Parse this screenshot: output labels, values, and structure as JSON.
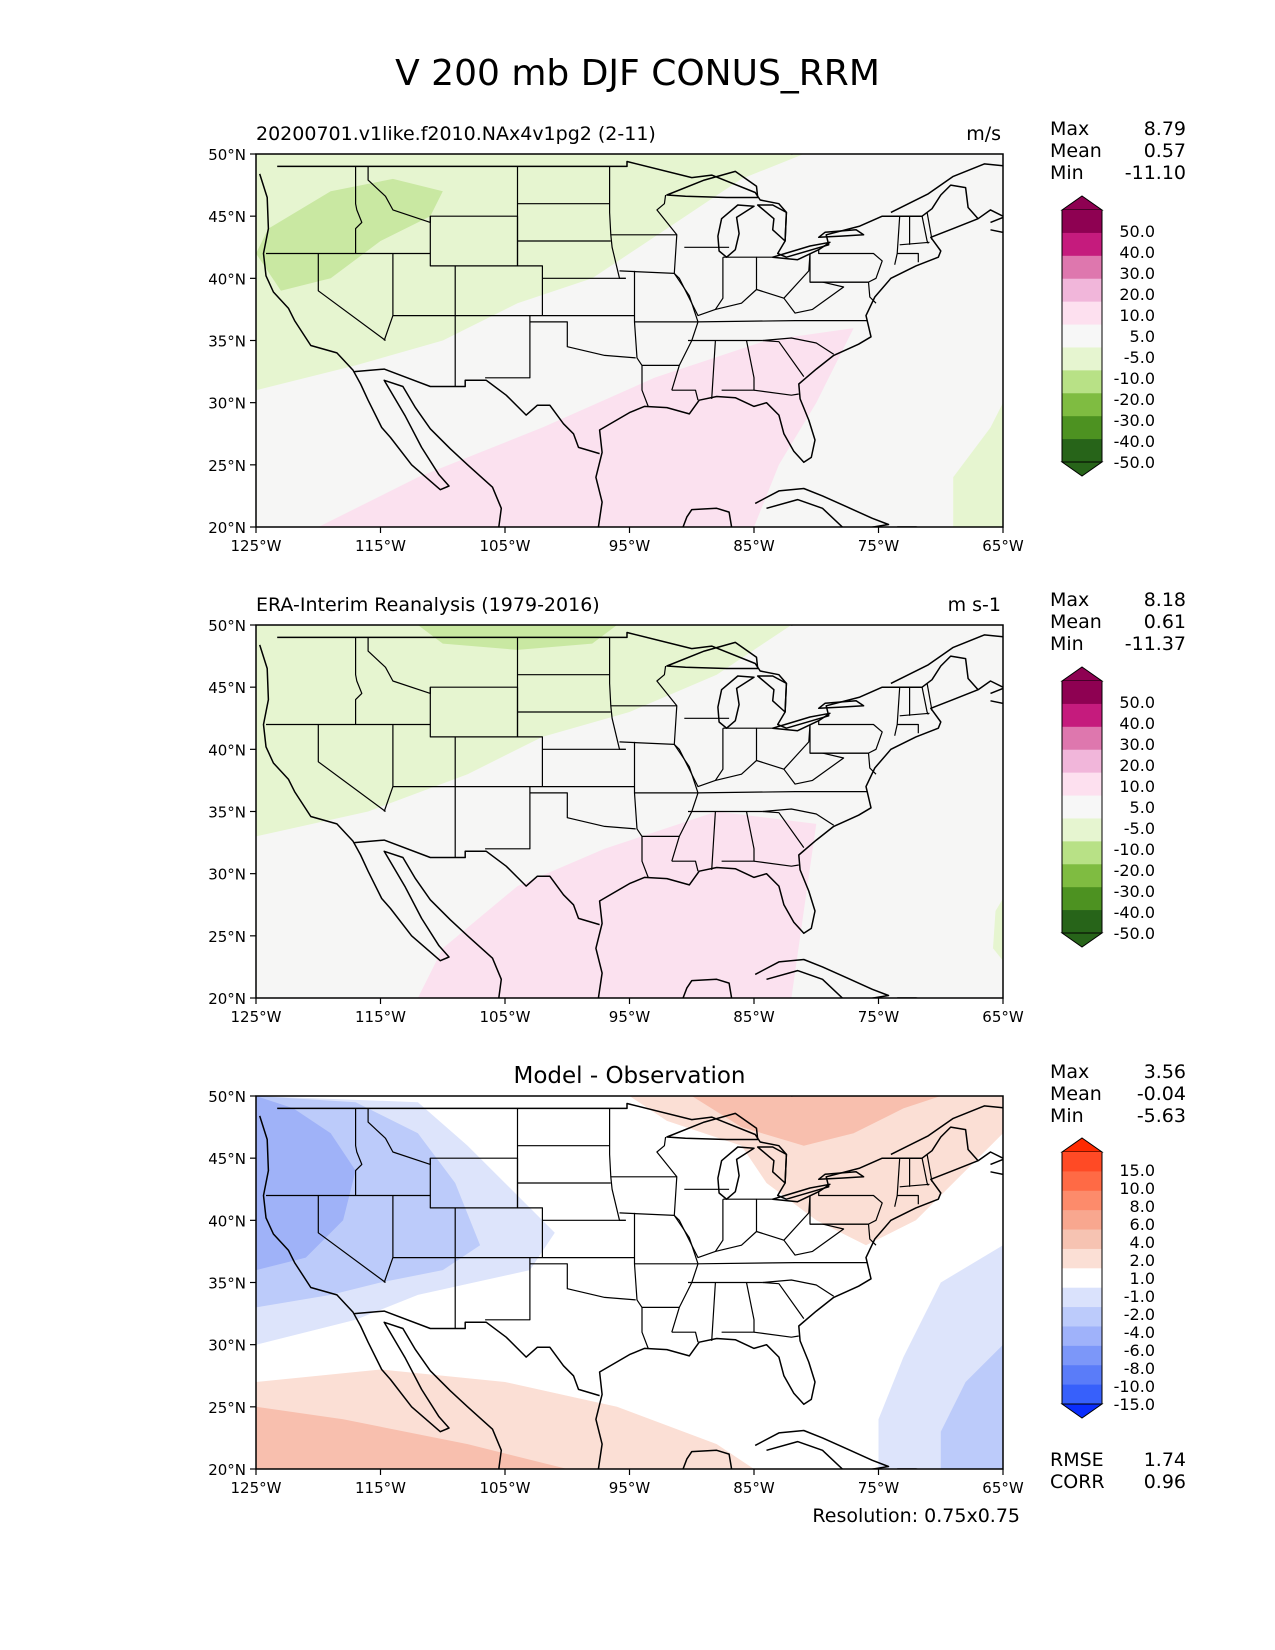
{
  "figure": {
    "title": "V 200 mb DJF CONUS_RRM",
    "resolution_label": "Resolution: 0.75x0.75"
  },
  "axes": {
    "lat_ticks": [
      "50°N",
      "45°N",
      "40°N",
      "35°N",
      "30°N",
      "25°N",
      "20°N"
    ],
    "lon_ticks": [
      "125°W",
      "115°W",
      "105°W",
      "95°W",
      "85°W",
      "75°W",
      "65°W"
    ],
    "lat_range": [
      20,
      50
    ],
    "lon_range": [
      -125,
      -65
    ]
  },
  "panels": [
    {
      "label_left": "20200701.v1like.f2010.NAx4v1pg2 (2-11)",
      "label_right": "m/s",
      "stats": {
        "max_label": "Max",
        "max": "8.79",
        "mean_label": "Mean",
        "mean": "0.57",
        "min_label": "Min",
        "min": "-11.10"
      },
      "colorbar": {
        "levels": [
          "50.0",
          "40.0",
          "30.0",
          "20.0",
          "10.0",
          "5.0",
          "-5.0",
          "-10.0",
          "-20.0",
          "-30.0",
          "-40.0",
          "-50.0"
        ],
        "colors": [
          "#8e0152",
          "#c51b7d",
          "#de77ae",
          "#f1b6da",
          "#fde0ef",
          "#f7f7f7",
          "#e6f5d0",
          "#b8e186",
          "#7fbc41",
          "#4d9221",
          "#276419"
        ],
        "over_color": "#8e0152",
        "under_color": "#276419"
      }
    },
    {
      "label_left": "ERA-Interim Reanalysis (1979-2016)",
      "label_right": "m s-1",
      "stats": {
        "max_label": "Max",
        "max": "8.18",
        "mean_label": "Mean",
        "mean": "0.61",
        "min_label": "Min",
        "min": "-11.37"
      },
      "colorbar": {
        "levels": [
          "50.0",
          "40.0",
          "30.0",
          "20.0",
          "10.0",
          "5.0",
          "-5.0",
          "-10.0",
          "-20.0",
          "-30.0",
          "-40.0",
          "-50.0"
        ],
        "colors": [
          "#8e0152",
          "#c51b7d",
          "#de77ae",
          "#f1b6da",
          "#fde0ef",
          "#f7f7f7",
          "#e6f5d0",
          "#b8e186",
          "#7fbc41",
          "#4d9221",
          "#276419"
        ],
        "over_color": "#8e0152",
        "under_color": "#276419"
      }
    },
    {
      "title": "Model - Observation",
      "stats": {
        "max_label": "Max",
        "max": "3.56",
        "mean_label": "Mean",
        "mean": "-0.04",
        "min_label": "Min",
        "min": "-5.63"
      },
      "extra_stats": {
        "rmse_label": "RMSE",
        "rmse": "1.74",
        "corr_label": "CORR",
        "corr": "0.96"
      },
      "colorbar": {
        "levels": [
          "15.0",
          "10.0",
          "8.0",
          "6.0",
          "4.0",
          "2.0",
          "1.0",
          "-1.0",
          "-2.0",
          "-4.0",
          "-6.0",
          "-8.0",
          "-10.0",
          "-15.0"
        ],
        "colors": [
          "#ff4a25",
          "#ff6a45",
          "#fd8b6b",
          "#f8a78f",
          "#f6c3b2",
          "#fbdfd5",
          "#ffffff",
          "#dae2fc",
          "#bccbfb",
          "#9fb2fa",
          "#7c97f9",
          "#5a7cf9",
          "#3760fb"
        ],
        "over_color": "#ff2a00",
        "under_color": "#0a2dfd"
      }
    }
  ]
}
